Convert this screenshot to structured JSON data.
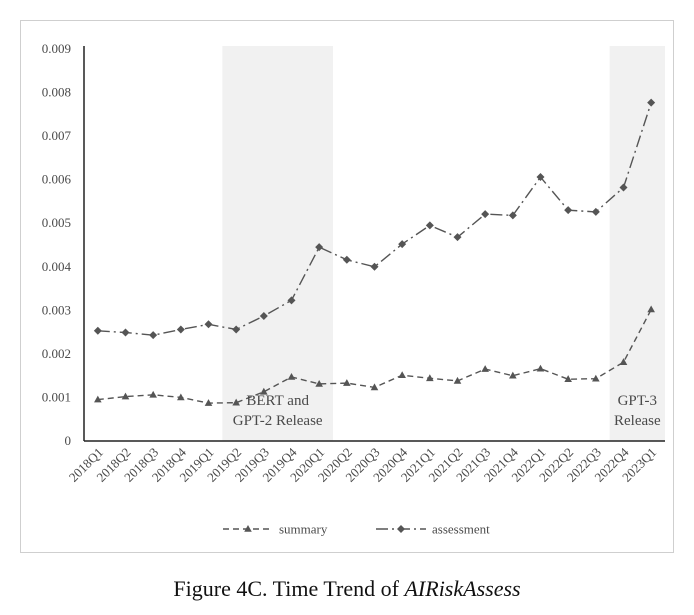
{
  "caption": {
    "prefix": "Figure 4C. Time Trend of ",
    "emphasis": "AIRiskAssess"
  },
  "chart_data": {
    "type": "line",
    "title": "",
    "xlabel": "",
    "ylabel": "",
    "categories": [
      "2018Q1",
      "2018Q2",
      "2018Q3",
      "2018Q4",
      "2019Q1",
      "2019Q2",
      "2019Q3",
      "2019Q4",
      "2020Q1",
      "2020Q2",
      "2020Q3",
      "2020Q4",
      "2021Q1",
      "2021Q2",
      "2021Q3",
      "2021Q4",
      "2022Q1",
      "2022Q2",
      "2022Q3",
      "2022Q4",
      "2023Q1"
    ],
    "ylim": [
      0,
      0.009
    ],
    "yticks": [
      "0",
      "0.001",
      "0.002",
      "0.003",
      "0.004",
      "0.005",
      "0.006",
      "0.007",
      "0.008",
      "0.009"
    ],
    "grid": false,
    "legend_position": "bottom",
    "series": [
      {
        "name": "summary",
        "line_style": "dashed",
        "marker": "triangle",
        "color": "#555555",
        "values": [
          0.00095,
          0.00102,
          0.00106,
          0.001,
          0.00087,
          0.00088,
          0.00113,
          0.00147,
          0.00131,
          0.00133,
          0.00123,
          0.00151,
          0.00144,
          0.00138,
          0.00165,
          0.0015,
          0.00166,
          0.00142,
          0.00143,
          0.00181,
          0.00302
        ]
      },
      {
        "name": "assessment",
        "line_style": "dash-dot",
        "marker": "diamond",
        "color": "#555555",
        "values": [
          0.00253,
          0.00249,
          0.00243,
          0.00256,
          0.00268,
          0.00256,
          0.00287,
          0.00323,
          0.00445,
          0.00416,
          0.004,
          0.00452,
          0.00495,
          0.00468,
          0.00521,
          0.00518,
          0.00606,
          0.0053,
          0.00526,
          0.00582,
          0.00777
        ]
      }
    ],
    "shaded_regions": [
      {
        "from": "2019Q2",
        "to": "2020Q1",
        "color": "#f1f1f1",
        "label_lines": [
          "BERT and",
          "GPT-2 Release"
        ]
      },
      {
        "from": "2022Q4",
        "to": "2023Q1",
        "color": "#f1f1f1",
        "label_lines": [
          "GPT-3",
          "Release"
        ]
      }
    ]
  }
}
